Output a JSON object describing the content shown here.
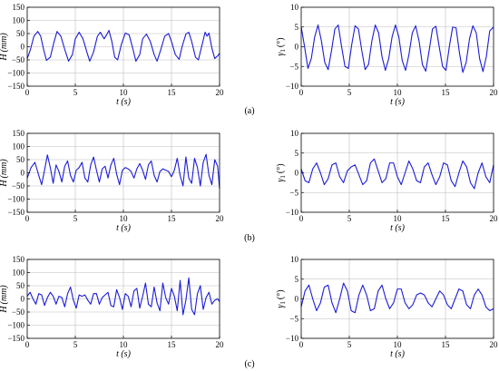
{
  "panel_labels": [
    "(a)",
    "(b)",
    "(c)"
  ],
  "chart_data": [
    {
      "id": "a-wave-height",
      "type": "line",
      "row": 0,
      "col": 0,
      "xlabel": "t (s)",
      "ylabel_main": "H",
      "ylabel_unit": "(mm)",
      "xlim": [
        0,
        20
      ],
      "ylim": [
        -150,
        150
      ],
      "xticks": [
        0,
        5,
        10,
        15,
        20
      ],
      "yticks": [
        -150,
        -100,
        -50,
        0,
        50,
        100,
        150
      ],
      "xtick_labels": [
        "0",
        "5",
        "10",
        "15",
        "20"
      ],
      "ytick_labels": [
        "−150",
        "−100",
        "−50",
        "0",
        "50",
        "100",
        "150"
      ],
      "grid": true,
      "color": "#1c1cd6",
      "x": [
        0,
        0.3,
        0.7,
        1.1,
        1.4,
        1.7,
        2.0,
        2.4,
        2.8,
        3.1,
        3.5,
        3.9,
        4.3,
        4.7,
        5.0,
        5.4,
        5.8,
        6.2,
        6.5,
        6.9,
        7.3,
        7.6,
        8.0,
        8.3,
        8.5,
        8.8,
        9.1,
        9.4,
        9.8,
        10.2,
        10.6,
        11.0,
        11.3,
        11.7,
        12.0,
        12.4,
        12.8,
        13.2,
        13.5,
        13.9,
        14.3,
        14.7,
        15.0,
        15.4,
        15.8,
        16.1,
        16.5,
        16.8,
        17.1,
        17.5,
        17.8,
        18.2,
        18.5,
        18.7,
        18.9,
        19.2,
        19.5,
        19.8,
        20
      ],
      "y": [
        -45,
        -15,
        40,
        58,
        40,
        -10,
        -52,
        -40,
        20,
        58,
        40,
        -10,
        -55,
        -30,
        30,
        55,
        30,
        -20,
        -55,
        -20,
        40,
        55,
        30,
        48,
        62,
        20,
        -40,
        -50,
        10,
        52,
        45,
        -10,
        -55,
        -30,
        30,
        48,
        20,
        -30,
        -55,
        -10,
        40,
        50,
        20,
        -30,
        -48,
        0,
        48,
        55,
        20,
        -40,
        -50,
        10,
        55,
        40,
        52,
        -5,
        -45,
        -35,
        -25
      ]
    },
    {
      "id": "a-roll-angle",
      "type": "line",
      "row": 0,
      "col": 1,
      "xlabel": "t (s)",
      "ylabel_main": "γ",
      "ylabel_sub": "1",
      "ylabel_unit": "(°)",
      "xlim": [
        0,
        20
      ],
      "ylim": [
        -10,
        10
      ],
      "xticks": [
        0,
        5,
        10,
        15,
        20
      ],
      "yticks": [
        -10,
        -5,
        0,
        5,
        10
      ],
      "xtick_labels": [
        "0",
        "5",
        "10",
        "15",
        "20"
      ],
      "ytick_labels": [
        "−10",
        "−5",
        "0",
        "5",
        "10"
      ],
      "grid": true,
      "color": "#1c1cd6",
      "x": [
        0,
        0.35,
        0.7,
        1.05,
        1.4,
        1.75,
        2.1,
        2.45,
        2.8,
        3.15,
        3.5,
        3.85,
        4.2,
        4.55,
        4.9,
        5.25,
        5.6,
        5.95,
        6.3,
        6.65,
        7.0,
        7.35,
        7.7,
        8.05,
        8.4,
        8.75,
        9.1,
        9.45,
        9.8,
        10.15,
        10.5,
        10.85,
        11.2,
        11.55,
        11.9,
        12.25,
        12.6,
        12.95,
        13.3,
        13.65,
        14.0,
        14.35,
        14.7,
        15.05,
        15.4,
        15.75,
        16.1,
        16.45,
        16.8,
        17.15,
        17.5,
        17.85,
        18.2,
        18.55,
        18.9,
        19.25,
        19.6,
        20
      ],
      "y": [
        5,
        0,
        -5.5,
        -3,
        2.5,
        5.5,
        1.5,
        -4,
        -5.8,
        -1,
        4.5,
        5.5,
        0,
        -5,
        -5.5,
        0.5,
        5.3,
        4.5,
        -1,
        -5.8,
        -4.5,
        1.5,
        5.5,
        3.5,
        -2.5,
        -6,
        -3,
        2.5,
        5.5,
        2.5,
        -3.5,
        -6,
        -2,
        3.5,
        5.3,
        1.5,
        -4.5,
        -6.2,
        -1,
        4.5,
        5.2,
        0,
        -5,
        -6,
        0,
        5,
        4.8,
        -1.5,
        -6.5,
        -4,
        2,
        5.3,
        3.5,
        -3,
        -6.3,
        -2.5,
        4,
        5
      ]
    },
    {
      "id": "b-wave-height",
      "type": "line",
      "row": 1,
      "col": 0,
      "xlabel": "t (s)",
      "ylabel_main": "H",
      "ylabel_unit": "(mm)",
      "xlim": [
        0,
        20
      ],
      "ylim": [
        -150,
        150
      ],
      "xticks": [
        0,
        5,
        10,
        15,
        20
      ],
      "yticks": [
        -150,
        -100,
        -50,
        0,
        50,
        100,
        150
      ],
      "xtick_labels": [
        "0",
        "5",
        "10",
        "15",
        "20"
      ],
      "ytick_labels": [
        "−150",
        "−100",
        "−50",
        "0",
        "50",
        "100",
        "150"
      ],
      "grid": true,
      "color": "#1c1cd6",
      "x": [
        0,
        0.4,
        0.8,
        1.2,
        1.5,
        1.8,
        2.1,
        2.4,
        2.7,
        3.0,
        3.3,
        3.6,
        3.9,
        4.2,
        4.5,
        4.8,
        5.1,
        5.4,
        5.7,
        6.0,
        6.3,
        6.6,
        6.9,
        7.2,
        7.5,
        7.8,
        8.1,
        8.4,
        8.7,
        9.0,
        9.3,
        9.6,
        9.9,
        10.2,
        10.5,
        10.8,
        11.1,
        11.4,
        11.7,
        12.0,
        12.3,
        12.6,
        12.9,
        13.2,
        13.5,
        13.8,
        14.1,
        14.4,
        14.7,
        15.0,
        15.3,
        15.6,
        15.9,
        16.2,
        16.5,
        16.8,
        17.1,
        17.4,
        17.7,
        18.0,
        18.3,
        18.6,
        18.9,
        19.2,
        19.5,
        19.8,
        20
      ],
      "y": [
        -20,
        20,
        40,
        -10,
        -45,
        10,
        68,
        20,
        -40,
        30,
        5,
        -35,
        25,
        45,
        -10,
        -35,
        10,
        20,
        40,
        -20,
        -35,
        30,
        60,
        10,
        -35,
        15,
        25,
        -20,
        30,
        55,
        -5,
        -45,
        10,
        20,
        15,
        5,
        -20,
        15,
        35,
        10,
        -25,
        30,
        45,
        -10,
        -35,
        5,
        15,
        10,
        5,
        -15,
        10,
        55,
        -10,
        -50,
        60,
        -20,
        -40,
        55,
        20,
        -50,
        40,
        70,
        -10,
        -45,
        50,
        25,
        -60
      ]
    },
    {
      "id": "b-roll-angle",
      "type": "line",
      "row": 1,
      "col": 1,
      "xlabel": "t (s)",
      "ylabel_main": "γ",
      "ylabel_sub": "1",
      "ylabel_unit": "(°)",
      "xlim": [
        0,
        20
      ],
      "ylim": [
        -10,
        10
      ],
      "xticks": [
        0,
        5,
        10,
        15,
        20
      ],
      "yticks": [
        -10,
        -5,
        0,
        5,
        10
      ],
      "xtick_labels": [
        "0",
        "5",
        "10",
        "15",
        "20"
      ],
      "ytick_labels": [
        "−10",
        "−5",
        "0",
        "5",
        "10"
      ],
      "grid": true,
      "color": "#1c1cd6",
      "x": [
        0,
        0.4,
        0.8,
        1.2,
        1.6,
        2.0,
        2.4,
        2.8,
        3.2,
        3.6,
        4.0,
        4.4,
        4.8,
        5.2,
        5.6,
        6.0,
        6.4,
        6.8,
        7.2,
        7.6,
        8.0,
        8.4,
        8.8,
        9.2,
        9.6,
        10.0,
        10.4,
        10.8,
        11.2,
        11.6,
        12.0,
        12.4,
        12.8,
        13.2,
        13.6,
        14.0,
        14.4,
        14.8,
        15.2,
        15.6,
        16.0,
        16.4,
        16.8,
        17.2,
        17.6,
        18.0,
        18.4,
        18.8,
        19.2,
        19.6,
        20
      ],
      "y": [
        1,
        -2,
        -2.5,
        1,
        2.5,
        0,
        -3,
        -1.5,
        2,
        2.5,
        -1,
        -2.5,
        0.5,
        1.5,
        2,
        -0.5,
        -3,
        -2,
        2.5,
        3.5,
        0.5,
        -2.5,
        -1.5,
        2.5,
        2.5,
        -1,
        -3,
        0,
        3,
        1,
        -2,
        -2.5,
        1.5,
        2.5,
        -0.5,
        -3,
        -1,
        2.5,
        2,
        -2,
        -3.5,
        0,
        3,
        1.5,
        -2.5,
        -4,
        0,
        2.5,
        -1,
        -2.5,
        2
      ]
    },
    {
      "id": "c-wave-height",
      "type": "line",
      "row": 2,
      "col": 0,
      "xlabel": "t (s)",
      "ylabel_main": "H",
      "ylabel_unit": "(mm)",
      "xlim": [
        0,
        20
      ],
      "ylim": [
        -150,
        150
      ],
      "xticks": [
        0,
        5,
        10,
        15,
        20
      ],
      "yticks": [
        -150,
        -100,
        -50,
        0,
        50,
        100,
        150
      ],
      "xtick_labels": [
        "0",
        "5",
        "10",
        "15",
        "20"
      ],
      "ytick_labels": [
        "−150",
        "−100",
        "−50",
        "0",
        "50",
        "100",
        "150"
      ],
      "grid": true,
      "color": "#1c1cd6",
      "x": [
        0,
        0.3,
        0.6,
        0.9,
        1.2,
        1.5,
        1.8,
        2.1,
        2.4,
        2.7,
        3.0,
        3.3,
        3.6,
        3.9,
        4.2,
        4.5,
        4.8,
        5.1,
        5.4,
        5.7,
        6.0,
        6.3,
        6.6,
        6.9,
        7.2,
        7.5,
        7.8,
        8.1,
        8.4,
        8.7,
        9.0,
        9.3,
        9.6,
        9.9,
        10.2,
        10.5,
        10.8,
        11.1,
        11.4,
        11.7,
        12.0,
        12.3,
        12.6,
        12.9,
        13.2,
        13.5,
        13.8,
        14.1,
        14.4,
        14.7,
        15.0,
        15.3,
        15.6,
        15.9,
        16.2,
        16.5,
        16.8,
        17.1,
        17.4,
        17.7,
        18.0,
        18.3,
        18.6,
        18.9,
        19.2,
        19.5,
        19.8,
        20
      ],
      "y": [
        10,
        25,
        0,
        -20,
        20,
        15,
        -25,
        5,
        25,
        10,
        -20,
        10,
        5,
        -30,
        20,
        45,
        -5,
        -35,
        15,
        10,
        15,
        -5,
        -20,
        20,
        20,
        -20,
        5,
        15,
        25,
        -25,
        -30,
        35,
        5,
        -40,
        20,
        10,
        -30,
        30,
        40,
        -35,
        10,
        60,
        -20,
        -30,
        45,
        -15,
        -45,
        60,
        5,
        -20,
        40,
        10,
        -45,
        70,
        -60,
        -5,
        80,
        -40,
        -60,
        20,
        50,
        -40,
        5,
        25,
        -20,
        -5,
        0,
        -10
      ]
    },
    {
      "id": "c-roll-angle",
      "type": "line",
      "row": 2,
      "col": 1,
      "xlabel": "t (s)",
      "ylabel_main": "γ",
      "ylabel_sub": "1",
      "ylabel_unit": "(°)",
      "xlim": [
        0,
        20
      ],
      "ylim": [
        -10,
        10
      ],
      "xticks": [
        0,
        5,
        10,
        15,
        20
      ],
      "yticks": [
        -10,
        -5,
        0,
        5,
        10
      ],
      "xtick_labels": [
        "0",
        "5",
        "10",
        "15",
        "20"
      ],
      "ytick_labels": [
        "−10",
        "−5",
        "0",
        "5",
        "10"
      ],
      "grid": true,
      "color": "#1c1cd6",
      "x": [
        0,
        0.4,
        0.8,
        1.2,
        1.6,
        2.0,
        2.4,
        2.8,
        3.2,
        3.6,
        4.0,
        4.4,
        4.8,
        5.2,
        5.6,
        6.0,
        6.4,
        6.8,
        7.2,
        7.6,
        8.0,
        8.4,
        8.8,
        9.2,
        9.6,
        10.0,
        10.4,
        10.8,
        11.2,
        11.6,
        12.0,
        12.4,
        12.8,
        13.2,
        13.6,
        14.0,
        14.4,
        14.8,
        15.2,
        15.6,
        16.0,
        16.4,
        16.8,
        17.2,
        17.6,
        18.0,
        18.4,
        18.8,
        19.2,
        19.6,
        20
      ],
      "y": [
        -2,
        2,
        3.5,
        0,
        -3,
        -1,
        3,
        3.5,
        -1,
        -3.5,
        0,
        4,
        2,
        -3,
        -3.5,
        1,
        3.5,
        1,
        -3,
        -2.5,
        2,
        3.5,
        0,
        -2.5,
        -1,
        2.5,
        2.5,
        -1,
        -2.5,
        -1.5,
        1,
        1.5,
        1,
        -1,
        -2,
        0,
        2,
        1,
        -1.5,
        -2.5,
        0,
        2.5,
        2,
        -1.5,
        -2.5,
        1,
        2.5,
        1,
        -2,
        -3,
        -2.5
      ]
    }
  ]
}
